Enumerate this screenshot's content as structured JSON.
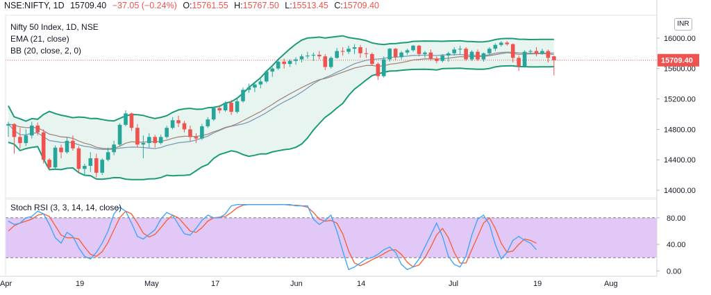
{
  "header": {
    "symbol": "NSE:NIFTY, 1D",
    "price": "15709.40",
    "change": "−37.05 (−0.24%)",
    "o_label": "O:",
    "o_value": "15761.55",
    "h_label": "H:",
    "h_value": "15767.50",
    "l_label": "L:",
    "l_value": "15513.45",
    "c_label": "C:",
    "c_value": "15709.40"
  },
  "legend": {
    "line1": "Nifty 50 Index, 1D, NSE",
    "line2": "EMA (21, close)",
    "line3": "BB (20, close, 2, 0)",
    "stoch": "Stoch RSI (3, 3, 14, 14, close)"
  },
  "currency": "INR",
  "colors": {
    "up": "#26a69a",
    "down": "#ef5350",
    "bb": "#1b9b78",
    "bb_fill": "#e8f4f0",
    "ema": "#a1887f",
    "basis": "#7e9bb4",
    "stoch_k": "#42a5f5",
    "stoch_d": "#f4633d",
    "stoch_band": "#e1c8f7"
  },
  "chart_data": [
    {
      "type": "candlestick",
      "title": "Nifty 50 Index, 1D, NSE",
      "ylim": [
        13900,
        16300
      ],
      "y_ticks": [
        "16000.00",
        "15600.00",
        "15200.00",
        "14800.00",
        "14400.00",
        "14000.00"
      ],
      "x_ticks": [
        "Apr",
        "19",
        "May",
        "17",
        "Jun",
        "14",
        "Jul",
        "19",
        "Aug"
      ],
      "current_price": "15709.40",
      "candles": [
        [
          14850,
          14900,
          14700,
          14870
        ],
        [
          14870,
          14880,
          14480,
          14700
        ],
        [
          14700,
          14820,
          14550,
          14620
        ],
        [
          14620,
          14800,
          14580,
          14720
        ],
        [
          14720,
          14900,
          14680,
          14850
        ],
        [
          14850,
          14890,
          14720,
          14760
        ],
        [
          14760,
          14800,
          14350,
          14400
        ],
        [
          14400,
          14420,
          14260,
          14300
        ],
        [
          14300,
          14590,
          14280,
          14560
        ],
        [
          14560,
          14600,
          14420,
          14500
        ],
        [
          14500,
          14700,
          14480,
          14650
        ],
        [
          14650,
          14720,
          14520,
          14550
        ],
        [
          14550,
          14580,
          14220,
          14280
        ],
        [
          14280,
          14350,
          14200,
          14320
        ],
        [
          14320,
          14500,
          14240,
          14420
        ],
        [
          14420,
          14480,
          14170,
          14230
        ],
        [
          14230,
          14420,
          14200,
          14400
        ],
        [
          14400,
          14560,
          14380,
          14500
        ],
        [
          14500,
          14650,
          14460,
          14600
        ],
        [
          14600,
          14880,
          14580,
          14860
        ],
        [
          14860,
          15050,
          14840,
          15010
        ],
        [
          15010,
          15020,
          14780,
          14820
        ],
        [
          14820,
          14870,
          14560,
          14600
        ],
        [
          14600,
          14720,
          14420,
          14620
        ],
        [
          14620,
          14750,
          14560,
          14700
        ],
        [
          14700,
          14730,
          14560,
          14620
        ],
        [
          14620,
          14730,
          14600,
          14700
        ],
        [
          14700,
          14850,
          14680,
          14820
        ],
        [
          14820,
          14960,
          14800,
          14920
        ],
        [
          14920,
          14980,
          14830,
          14880
        ],
        [
          14880,
          14910,
          14760,
          14800
        ],
        [
          14800,
          14850,
          14640,
          14700
        ],
        [
          14700,
          14750,
          14620,
          14680
        ],
        [
          14680,
          14870,
          14660,
          14840
        ],
        [
          14840,
          14960,
          14820,
          14930
        ],
        [
          14930,
          15100,
          14910,
          15080
        ],
        [
          15080,
          15120,
          15010,
          15050
        ],
        [
          15050,
          15170,
          15030,
          15150
        ],
        [
          15150,
          15190,
          14990,
          15030
        ],
        [
          15030,
          15200,
          15010,
          15170
        ],
        [
          15170,
          15350,
          15150,
          15320
        ],
        [
          15320,
          15400,
          15280,
          15350
        ],
        [
          15350,
          15420,
          15290,
          15390
        ],
        [
          15390,
          15460,
          15340,
          15430
        ],
        [
          15430,
          15570,
          15410,
          15560
        ],
        [
          15560,
          15620,
          15490,
          15600
        ],
        [
          15600,
          15700,
          15580,
          15690
        ],
        [
          15690,
          15730,
          15600,
          15660
        ],
        [
          15660,
          15720,
          15620,
          15700
        ],
        [
          15700,
          15750,
          15650,
          15720
        ],
        [
          15720,
          15790,
          15680,
          15760
        ],
        [
          15760,
          15820,
          15730,
          15770
        ],
        [
          15770,
          15810,
          15700,
          15780
        ],
        [
          15780,
          15830,
          15720,
          15760
        ],
        [
          15760,
          15790,
          15580,
          15620
        ],
        [
          15620,
          15760,
          15600,
          15740
        ],
        [
          15740,
          15870,
          15730,
          15830
        ],
        [
          15830,
          15880,
          15770,
          15820
        ],
        [
          15820,
          15900,
          15790,
          15860
        ],
        [
          15860,
          15920,
          15790,
          15880
        ],
        [
          15880,
          15910,
          15740,
          15800
        ],
        [
          15800,
          15870,
          15740,
          15790
        ],
        [
          15790,
          15810,
          15640,
          15660
        ],
        [
          15660,
          15680,
          15450,
          15500
        ],
        [
          15500,
          15760,
          15480,
          15720
        ],
        [
          15720,
          15870,
          15690,
          15860
        ],
        [
          15860,
          15870,
          15710,
          15750
        ],
        [
          15750,
          15830,
          15720,
          15810
        ],
        [
          15810,
          15860,
          15780,
          15840
        ],
        [
          15840,
          15910,
          15820,
          15900
        ],
        [
          15900,
          15910,
          15760,
          15790
        ],
        [
          15790,
          15830,
          15740,
          15810
        ],
        [
          15810,
          15850,
          15700,
          15730
        ],
        [
          15730,
          15760,
          15670,
          15700
        ],
        [
          15700,
          15790,
          15680,
          15770
        ],
        [
          15770,
          15820,
          15690,
          15800
        ],
        [
          15800,
          15880,
          15770,
          15850
        ],
        [
          15850,
          15900,
          15780,
          15860
        ],
        [
          15860,
          15880,
          15700,
          15720
        ],
        [
          15720,
          15840,
          15700,
          15820
        ],
        [
          15820,
          15850,
          15700,
          15720
        ],
        [
          15720,
          15810,
          15690,
          15800
        ],
        [
          15800,
          15880,
          15780,
          15860
        ],
        [
          15860,
          15930,
          15830,
          15910
        ],
        [
          15910,
          15960,
          15890,
          15940
        ],
        [
          15940,
          15960,
          15900,
          15920
        ],
        [
          15920,
          15930,
          15680,
          15740
        ],
        [
          15740,
          15770,
          15570,
          15630
        ],
        [
          15630,
          15840,
          15610,
          15820
        ],
        [
          15820,
          15850,
          15790,
          15830
        ],
        [
          15830,
          15880,
          15760,
          15800
        ],
        [
          15800,
          15860,
          15780,
          15830
        ],
        [
          15830,
          15850,
          15680,
          15740
        ],
        [
          15760,
          15770,
          15510,
          15710
        ]
      ]
    },
    {
      "type": "line",
      "title": "Stoch RSI (3, 3, 14, 14, close)",
      "ylim": [
        -8,
        108
      ],
      "y_ticks": [
        "80.00",
        "40.00",
        "0.00"
      ],
      "band": [
        20,
        80
      ],
      "series": [
        {
          "name": "K",
          "values": [
            75,
            70,
            72,
            80,
            82,
            90,
            86,
            70,
            50,
            42,
            58,
            52,
            35,
            22,
            18,
            28,
            42,
            60,
            86,
            96,
            90,
            72,
            52,
            48,
            55,
            62,
            78,
            88,
            84,
            70,
            56,
            54,
            64,
            76,
            84,
            80,
            80,
            86,
            98,
            100,
            100,
            100,
            100,
            100,
            100,
            100,
            100,
            100,
            100,
            98,
            98,
            98,
            78,
            70,
            76,
            84,
            60,
            30,
            2,
            6,
            12,
            18,
            20,
            25,
            32,
            36,
            28,
            10,
            2,
            6,
            18,
            36,
            54,
            72,
            52,
            22,
            10,
            6,
            22,
            54,
            78,
            84,
            70,
            40,
            18,
            28,
            46,
            52,
            46,
            42,
            32
          ]
        },
        {
          "name": "D",
          "values": [
            60,
            68,
            72,
            75,
            78,
            84,
            86,
            82,
            68,
            54,
            50,
            50,
            48,
            36,
            25,
            22,
            29,
            43,
            62,
            80,
            90,
            86,
            72,
            57,
            51,
            55,
            65,
            76,
            84,
            80,
            70,
            60,
            58,
            65,
            75,
            80,
            81,
            82,
            88,
            95,
            99,
            100,
            100,
            100,
            100,
            100,
            100,
            100,
            99,
            99,
            98,
            96,
            88,
            78,
            75,
            76,
            72,
            56,
            30,
            12,
            8,
            12,
            17,
            21,
            26,
            31,
            32,
            25,
            13,
            6,
            9,
            20,
            36,
            54,
            64,
            50,
            28,
            12,
            12,
            32,
            52,
            72,
            80,
            64,
            42,
            28,
            30,
            40,
            48,
            46,
            42
          ]
        }
      ]
    }
  ]
}
